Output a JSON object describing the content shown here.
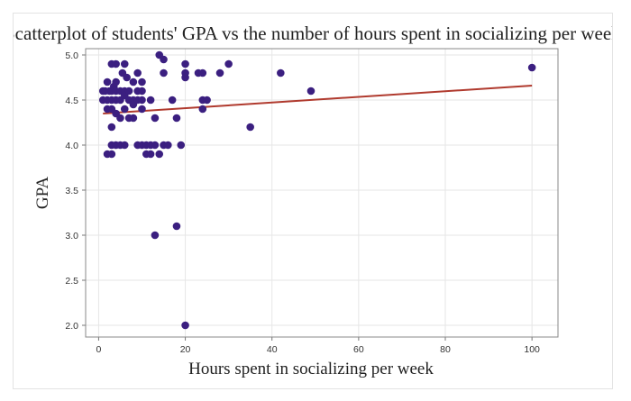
{
  "chart_data": {
    "type": "scatter",
    "title": "Scatterplot of students' GPA vs the number of hours spent in socializing per week",
    "xlabel": "Hours spent in socializing per week",
    "ylabel": "GPA",
    "xlim": [
      -3,
      106
    ],
    "ylim": [
      1.87,
      5.07
    ],
    "xticks": [
      "0",
      "20",
      "40",
      "60",
      "80",
      "100"
    ],
    "yticks": [
      "2.0",
      "2.5",
      "3.0",
      "3.5",
      "4.0",
      "4.5",
      "5.0"
    ],
    "grid": true,
    "point_color": "#3b1f80",
    "trend_color": "#b03a2e",
    "trendline": {
      "x": [
        1,
        100
      ],
      "y": [
        4.35,
        4.66
      ]
    },
    "points": [
      [
        1,
        4.6
      ],
      [
        1,
        4.5
      ],
      [
        1.5,
        4.6
      ],
      [
        2,
        4.7
      ],
      [
        2,
        4.5
      ],
      [
        2,
        4.4
      ],
      [
        2,
        3.9
      ],
      [
        2.5,
        4.6
      ],
      [
        3,
        4.9
      ],
      [
        3,
        4.6
      ],
      [
        3,
        4.5
      ],
      [
        3,
        4.4
      ],
      [
        3,
        4.2
      ],
      [
        3,
        4.0
      ],
      [
        3,
        3.9
      ],
      [
        3.5,
        4.65
      ],
      [
        4,
        4.9
      ],
      [
        4,
        4.7
      ],
      [
        4,
        4.6
      ],
      [
        4,
        4.5
      ],
      [
        4,
        4.35
      ],
      [
        4,
        4.0
      ],
      [
        5,
        4.6
      ],
      [
        5,
        4.5
      ],
      [
        5,
        4.3
      ],
      [
        5,
        4.0
      ],
      [
        5.5,
        4.8
      ],
      [
        6,
        4.9
      ],
      [
        6,
        4.6
      ],
      [
        6,
        4.55
      ],
      [
        6,
        4.4
      ],
      [
        6,
        4.0
      ],
      [
        6.5,
        4.75
      ],
      [
        7,
        4.6
      ],
      [
        7,
        4.5
      ],
      [
        7,
        4.3
      ],
      [
        8,
        4.7
      ],
      [
        8,
        4.5
      ],
      [
        8,
        4.45
      ],
      [
        8,
        4.3
      ],
      [
        9,
        4.8
      ],
      [
        9,
        4.6
      ],
      [
        9,
        4.5
      ],
      [
        9,
        4.0
      ],
      [
        10,
        4.7
      ],
      [
        10,
        4.6
      ],
      [
        10,
        4.5
      ],
      [
        10,
        4.4
      ],
      [
        10,
        4.0
      ],
      [
        11,
        4.0
      ],
      [
        11,
        3.9
      ],
      [
        12,
        4.5
      ],
      [
        12,
        4.0
      ],
      [
        12,
        3.9
      ],
      [
        13,
        4.3
      ],
      [
        13,
        4.0
      ],
      [
        13,
        3.0
      ],
      [
        14,
        5.0
      ],
      [
        14,
        3.9
      ],
      [
        15,
        4.95
      ],
      [
        15,
        4.8
      ],
      [
        15,
        4.0
      ],
      [
        16,
        4.0
      ],
      [
        17,
        4.5
      ],
      [
        18,
        4.3
      ],
      [
        18,
        3.1
      ],
      [
        19,
        4.0
      ],
      [
        20,
        4.9
      ],
      [
        20,
        4.8
      ],
      [
        20,
        4.75
      ],
      [
        20,
        2.0
      ],
      [
        23,
        4.8
      ],
      [
        24,
        4.8
      ],
      [
        24,
        4.5
      ],
      [
        24,
        4.4
      ],
      [
        25,
        4.5
      ],
      [
        28,
        4.8
      ],
      [
        30,
        4.9
      ],
      [
        35,
        4.2
      ],
      [
        42,
        4.8
      ],
      [
        49,
        4.6
      ],
      [
        100,
        4.86
      ]
    ]
  }
}
